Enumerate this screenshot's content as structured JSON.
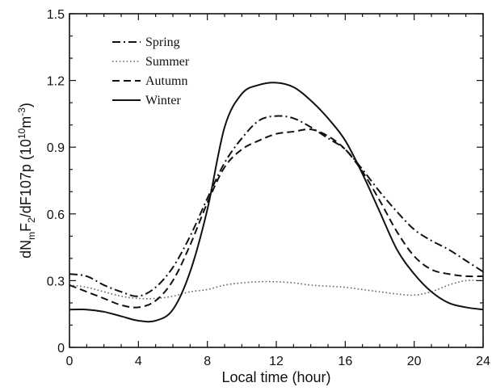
{
  "chart_data": {
    "type": "line",
    "title": "",
    "xlabel": "Local time (hour)",
    "ylabel_parts": {
      "a": "dN",
      "a_sub": "m",
      "b": "F",
      "b_sub": "2",
      "c": "/dF107p (10",
      "c_sup": "10",
      "d": "m",
      "d_sup": "-3",
      "e": ")"
    },
    "xlim": [
      0,
      24
    ],
    "ylim": [
      0,
      1.5
    ],
    "xticks": [
      {
        "value": 0,
        "label": "0"
      },
      {
        "value": 4,
        "label": "4"
      },
      {
        "value": 8,
        "label": "8"
      },
      {
        "value": 12,
        "label": "12"
      },
      {
        "value": 16,
        "label": "16"
      },
      {
        "value": 20,
        "label": "20"
      },
      {
        "value": 24,
        "label": "24"
      }
    ],
    "yticks": [
      {
        "value": 0,
        "label": "0"
      },
      {
        "value": 0.3,
        "label": "0.3"
      },
      {
        "value": 0.6,
        "label": "0.6"
      },
      {
        "value": 0.9,
        "label": "0.9"
      },
      {
        "value": 1.2,
        "label": "1.2"
      },
      {
        "value": 1.5,
        "label": "1.5"
      }
    ],
    "grid": false,
    "legend": "top-left",
    "series": [
      {
        "name": "Spring",
        "style": "dashdot",
        "color": "#111111",
        "x": [
          0,
          1,
          2,
          3,
          4,
          5,
          6,
          7,
          8,
          9,
          10,
          11,
          12,
          13,
          14,
          15,
          16,
          17,
          18,
          19,
          20,
          21,
          22,
          23,
          24
        ],
        "y": [
          0.33,
          0.32,
          0.28,
          0.25,
          0.23,
          0.27,
          0.36,
          0.5,
          0.67,
          0.83,
          0.94,
          1.02,
          1.04,
          1.03,
          0.99,
          0.94,
          0.89,
          0.8,
          0.7,
          0.61,
          0.53,
          0.48,
          0.44,
          0.39,
          0.34
        ]
      },
      {
        "name": "Summer",
        "style": "dotted",
        "color": "#666666",
        "x": [
          0,
          1,
          2,
          3,
          4,
          5,
          6,
          7,
          8,
          9,
          10,
          11,
          12,
          13,
          14,
          15,
          16,
          17,
          18,
          19,
          20,
          21,
          22,
          23,
          24
        ],
        "y": [
          0.28,
          0.27,
          0.25,
          0.23,
          0.22,
          0.22,
          0.23,
          0.25,
          0.26,
          0.28,
          0.29,
          0.295,
          0.295,
          0.29,
          0.28,
          0.275,
          0.27,
          0.26,
          0.25,
          0.24,
          0.235,
          0.25,
          0.28,
          0.3,
          0.3
        ]
      },
      {
        "name": "Autumn",
        "style": "dashed",
        "color": "#111111",
        "x": [
          0,
          1,
          2,
          3,
          4,
          5,
          6,
          7,
          8,
          9,
          10,
          11,
          12,
          13,
          14,
          15,
          16,
          17,
          18,
          19,
          20,
          21,
          22,
          23,
          24
        ],
        "y": [
          0.28,
          0.25,
          0.22,
          0.19,
          0.18,
          0.21,
          0.3,
          0.46,
          0.65,
          0.81,
          0.89,
          0.93,
          0.96,
          0.97,
          0.98,
          0.95,
          0.89,
          0.79,
          0.66,
          0.52,
          0.41,
          0.35,
          0.33,
          0.32,
          0.32
        ]
      },
      {
        "name": "Winter",
        "style": "solid",
        "color": "#111111",
        "x": [
          0,
          1,
          2,
          3,
          4,
          5,
          6,
          7,
          8,
          9,
          10,
          11,
          12,
          13,
          14,
          15,
          16,
          17,
          18,
          19,
          20,
          21,
          22,
          23,
          24
        ],
        "y": [
          0.17,
          0.17,
          0.16,
          0.14,
          0.12,
          0.12,
          0.17,
          0.34,
          0.62,
          0.99,
          1.14,
          1.18,
          1.19,
          1.17,
          1.11,
          1.03,
          0.93,
          0.78,
          0.61,
          0.44,
          0.33,
          0.25,
          0.2,
          0.18,
          0.17
        ]
      }
    ]
  }
}
